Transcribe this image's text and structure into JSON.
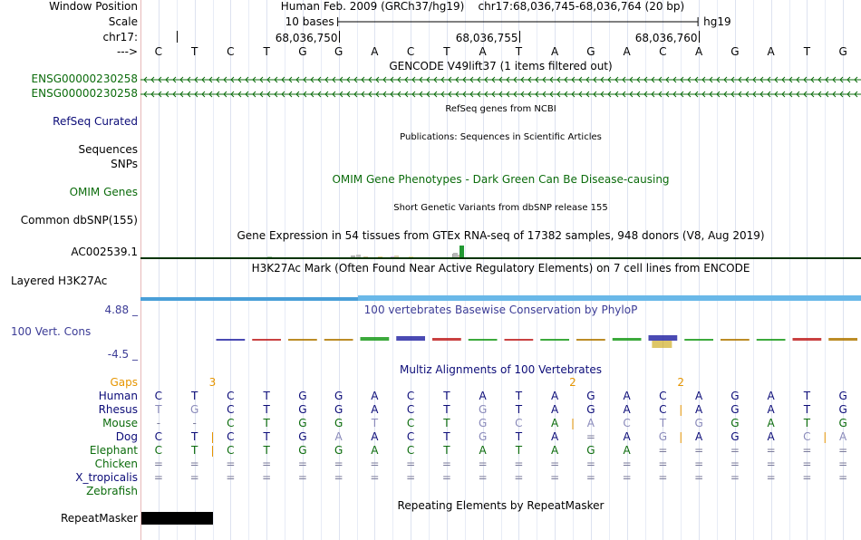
{
  "colors": {
    "gencode": "#0c6c0c",
    "refseq": "#0c0c78",
    "omim": "#0c6c0c",
    "cons": "#3c3c96",
    "gaps": "#e69500",
    "h3k27ac": "#6ab8e8",
    "guide": "#c8d8f0"
  },
  "ruler": {
    "position_label": "Window Position",
    "scale_label": "Scale",
    "chrom_label": "chr17:",
    "arrow_label": "--->",
    "assembly": "Human Feb. 2009 (GRCh37/hg19)",
    "region": "chr17:68,036,745-68,036,764 (20 bp)",
    "scale_text": "10 bases",
    "db": "hg19",
    "ticks": [
      {
        "base_index": 5,
        "label": "68,036,750"
      },
      {
        "base_index": 10,
        "label": "68,036,755"
      },
      {
        "base_index": 15,
        "label": "68,036,760"
      }
    ],
    "bases": [
      "C",
      "T",
      "C",
      "T",
      "G",
      "G",
      "A",
      "C",
      "T",
      "A",
      "T",
      "A",
      "G",
      "A",
      "C",
      "A",
      "G",
      "A",
      "T",
      "G"
    ]
  },
  "tracks": {
    "gencode": {
      "title": "GENCODE V49lift37 (1 items filtered out)",
      "items": [
        "ENSG00000230258",
        "ENSG00000230258"
      ]
    },
    "refseq": {
      "label": "RefSeq Curated",
      "title": "RefSeq genes from NCBI"
    },
    "publications": {
      "label": "Sequences",
      "title": "Publications: Sequences in Scientific Articles"
    },
    "snps": {
      "label": "SNPs"
    },
    "omim": {
      "label": "OMIM Genes",
      "title": "OMIM Gene Phenotypes - Dark Green Can Be Disease-causing"
    },
    "dbsnp": {
      "label": "Common dbSNP(155)",
      "title": "Short Genetic Variants from dbSNP release 155"
    },
    "gtex": {
      "label": "AC002539.1",
      "title": "Gene Expression in 54 tissues from GTEx RNA-seq of 17382 samples, 948 donors (V8, Aug 2019)"
    },
    "h3k27ac": {
      "label": "Layered H3K27Ac",
      "title": "H3K27Ac Mark (Often Found Near Active Regulatory Elements) on 7 cell lines from ENCODE"
    },
    "cons": {
      "label": "100 Vert. Cons",
      "ymax": "4.88 _",
      "ymin": "-4.5 _",
      "title": "100 vertebrates Basewise Conservation by PhyloP"
    },
    "multiz": {
      "title": "Multiz Alignments of 100 Vertebrates",
      "gaps_label": "Gaps",
      "gap_marks": [
        {
          "base_index": 1.5,
          "label": "3"
        },
        {
          "base_index": 11.5,
          "label": "2"
        },
        {
          "base_index": 14.5,
          "label": "2"
        }
      ],
      "species": [
        {
          "name": "Human",
          "color": "#0c0c78",
          "seq": "CTCTGGACTATAGACAGATG"
        },
        {
          "name": "Rhesus",
          "color": "#0c0c78",
          "seq": "TGCTGGACTGTAGACAGATG"
        },
        {
          "name": "Mouse",
          "color": "#0c6c0c",
          "seq": "--CTGGTCTGCAACTGGATG"
        },
        {
          "name": "Dog",
          "color": "#0c0c78",
          "seq": "CTCTGAACTGTA=AGAGACA"
        },
        {
          "name": "Elephant",
          "color": "#0c6c0c",
          "seq": "CTCTGGACTATAGA======"
        },
        {
          "name": "Chicken",
          "color": "#0c6c0c",
          "seq": "===================="
        },
        {
          "name": "X_tropicalis",
          "color": "#0c0c78",
          "seq": "===================="
        },
        {
          "name": "Zebrafish",
          "color": "#0c6c0c",
          "seq": ""
        }
      ]
    },
    "repeatmasker": {
      "label": "RepeatMasker",
      "title": "Repeating Elements by RepeatMasker"
    }
  }
}
